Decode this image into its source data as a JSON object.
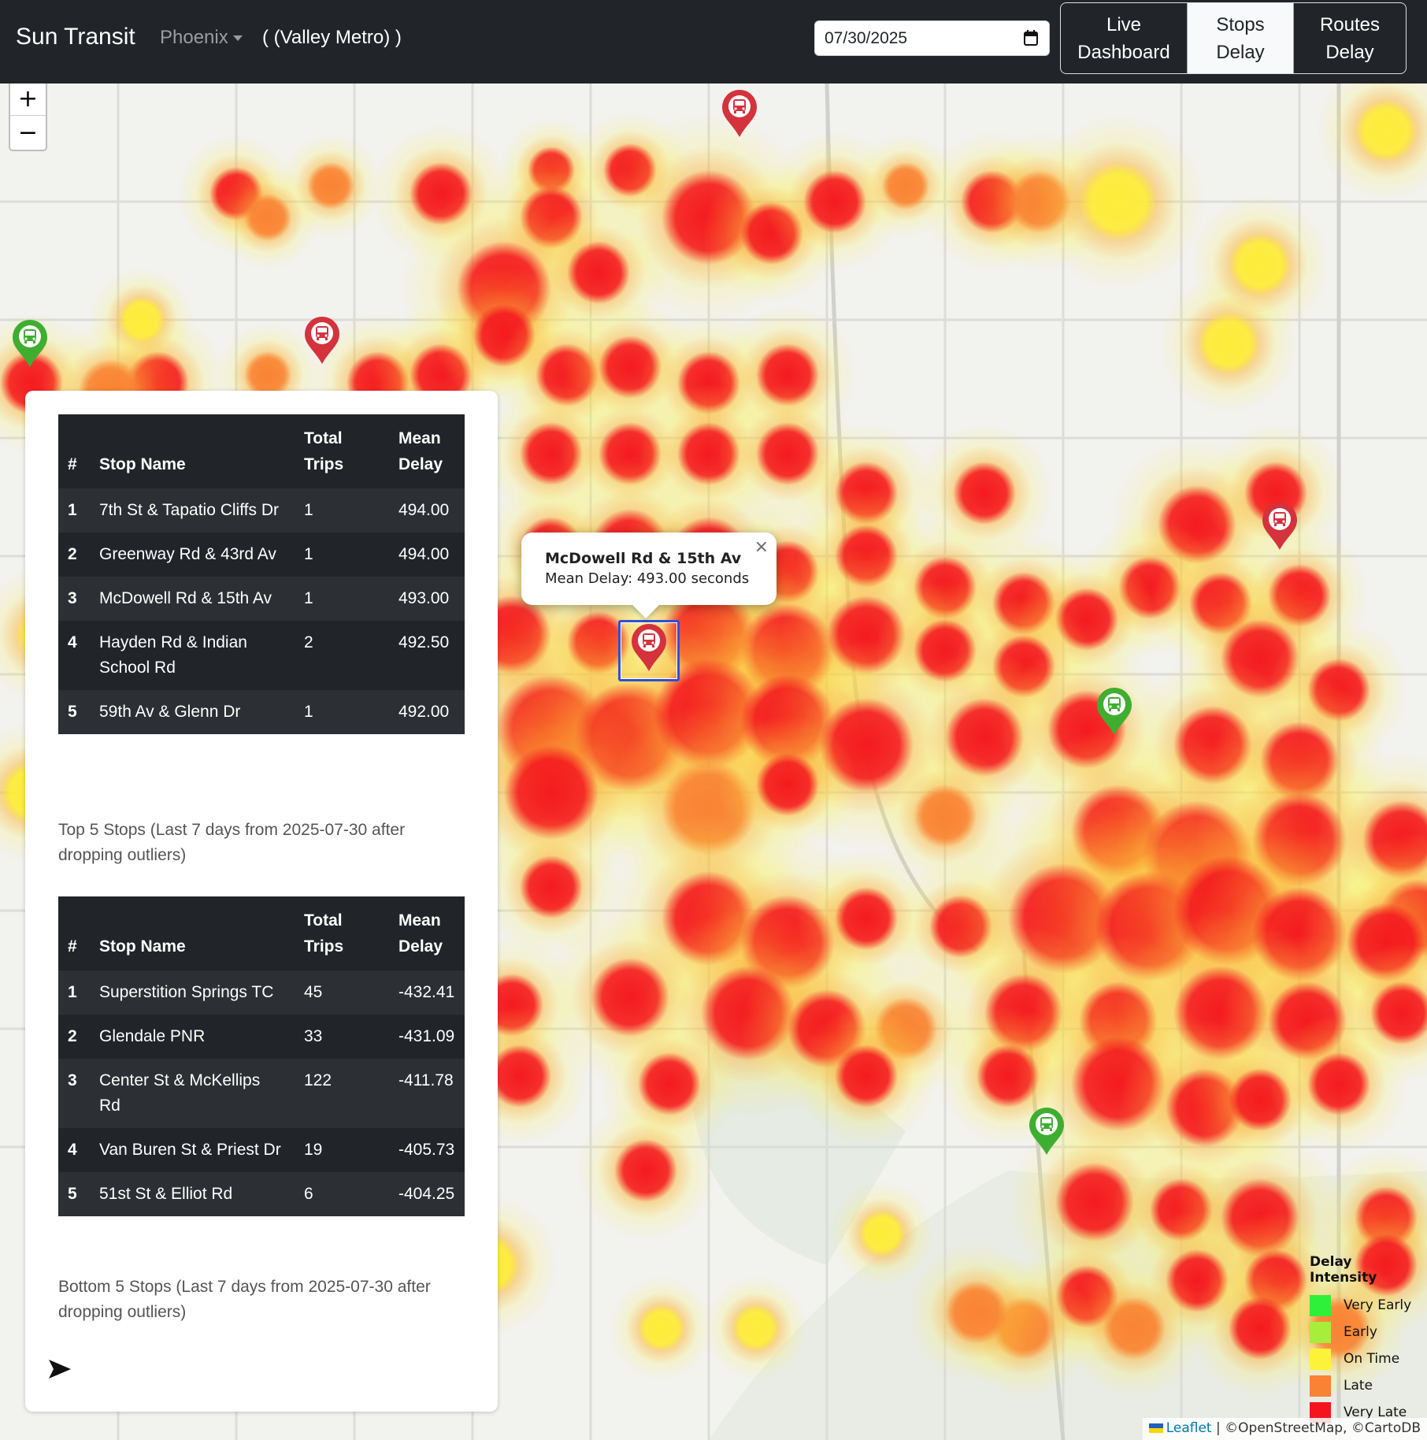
{
  "navbar": {
    "brand": "Sun Transit",
    "city": "Phoenix",
    "agency": "( (Valley Metro) )",
    "date_value": "07/30/2025",
    "buttons": [
      {
        "line1": "Live",
        "line2": "Dashboard"
      },
      {
        "line1": "Stops",
        "line2": "Delay"
      },
      {
        "line1": "Routes",
        "line2": "Delay"
      }
    ],
    "active_button": "Stops Delay"
  },
  "map": {
    "zoom_in": "+",
    "zoom_out": "−",
    "popup": {
      "title": "McDowell Rd & 15th Av",
      "text": "Mean Delay: 493.00 seconds",
      "close": "×"
    },
    "legend": {
      "title": "Delay Intensity",
      "items": [
        {
          "label": "Very Early",
          "color": "#2ef03a"
        },
        {
          "label": "Early",
          "color": "#a6ee3a"
        },
        {
          "label": "On Time",
          "color": "#fdf23a"
        },
        {
          "label": "Late",
          "color": "#f98233"
        },
        {
          "label": "Very Late",
          "color": "#f4141e"
        }
      ]
    },
    "attribution": {
      "leaflet": "Leaflet",
      "rest": " | ©OpenStreetMap, ©CartoDB"
    },
    "marker_colors": {
      "late": "#d4323c",
      "early": "#3fae2f"
    }
  },
  "top_table": {
    "headers": [
      "#",
      "Stop Name",
      "Total Trips",
      "Mean Delay"
    ],
    "rows": [
      {
        "rank": "1",
        "name": "7th St & Tapatio Cliffs Dr",
        "trips": "1",
        "delay": "494.00"
      },
      {
        "rank": "2",
        "name": "Greenway Rd & 43rd Av",
        "trips": "1",
        "delay": "494.00"
      },
      {
        "rank": "3",
        "name": "McDowell Rd & 15th Av",
        "trips": "1",
        "delay": "493.00"
      },
      {
        "rank": "4",
        "name": "Hayden Rd & Indian School Rd",
        "trips": "2",
        "delay": "492.50"
      },
      {
        "rank": "5",
        "name": "59th Av & Glenn Dr",
        "trips": "1",
        "delay": "492.00"
      }
    ],
    "caption": "Top 5 Stops (Last 7 days from 2025-07-30 after dropping outliers)"
  },
  "bottom_table": {
    "headers": [
      "#",
      "Stop Name",
      "Total Trips",
      "Mean Delay"
    ],
    "rows": [
      {
        "rank": "1",
        "name": "Superstition Springs TC",
        "trips": "45",
        "delay": "-432.41"
      },
      {
        "rank": "2",
        "name": "Glendale PNR",
        "trips": "33",
        "delay": "-431.09"
      },
      {
        "rank": "3",
        "name": "Center St & McKellips Rd",
        "trips": "122",
        "delay": "-411.78"
      },
      {
        "rank": "4",
        "name": "Van Buren St & Priest Dr",
        "trips": "19",
        "delay": "-405.73"
      },
      {
        "rank": "5",
        "name": "51st St & Elliot Rd",
        "trips": "6",
        "delay": "-404.25"
      }
    ],
    "caption": "Bottom 5 Stops (Last 7 days from 2025-07-30 after dropping outliers)"
  }
}
